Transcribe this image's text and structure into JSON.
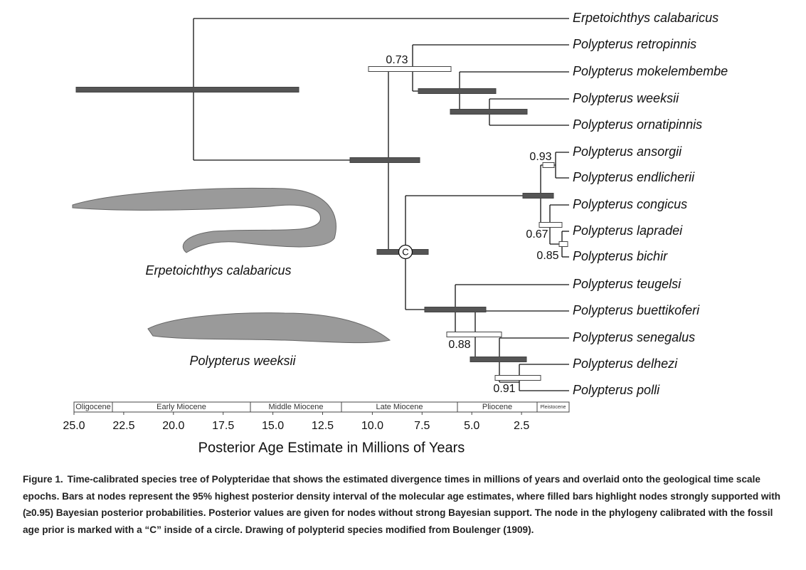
{
  "figure": {
    "taxa": [
      "Erpetoichthys calabaricus",
      "Polypterus retropinnis",
      "Polypterus mokelembembe",
      "Polypterus weeksii",
      "Polypterus ornatipinnis",
      "Polypterus ansorgii",
      "Polypterus endlicherii",
      "Polypterus congicus",
      "Polypterus lapradei",
      "Polypterus bichir",
      "Polypterus teugelsi",
      "Polypterus buettikoferi",
      "Polypterus senegalus",
      "Polypterus delhezi",
      "Polypterus polli"
    ],
    "posteriors": [
      0.73,
      0.93,
      0.67,
      0.85,
      0.88,
      0.91
    ],
    "fossil_calibration": "C",
    "fish_captions": [
      "Erpetoichthys calabaricus",
      "Polypterus weeksii"
    ],
    "epochs": [
      "Oligocene",
      "Early Miocene",
      "Middle Miocene",
      "Late Miocene",
      "Pliocene",
      "Pleistocene"
    ],
    "axis": {
      "ticks": [
        {
          "value": 25,
          "label": "25.0"
        },
        22.5,
        {
          "value": 20,
          "label": "20.0"
        },
        17.5,
        {
          "value": 15,
          "label": "15.0"
        },
        12.5,
        {
          "value": 10,
          "label": "10.0"
        },
        7.5,
        {
          "value": 5,
          "label": "5.0"
        },
        2.5
      ],
      "label": "Posterior Age Estimate in Millions of Years"
    },
    "caption": {
      "label": "Figure 1.",
      "text": "Time-calibrated species tree of Polypteridae that shows the estimated divergence times in millions of years and overlaid onto the geological time scale epochs. Bars at nodes represent the 95% highest posterior density interval of the molecular age estimates, where filled bars highlight nodes strongly supported with (≥0.95) Bayesian posterior probabilities. Posterior values are given for nodes without strong Bayesian support. The node in the phylogeny calibrated with the fossil age prior is marked with a “C” inside of a circle. Drawing of polypterid species modified from Boulenger (1909)."
    }
  }
}
